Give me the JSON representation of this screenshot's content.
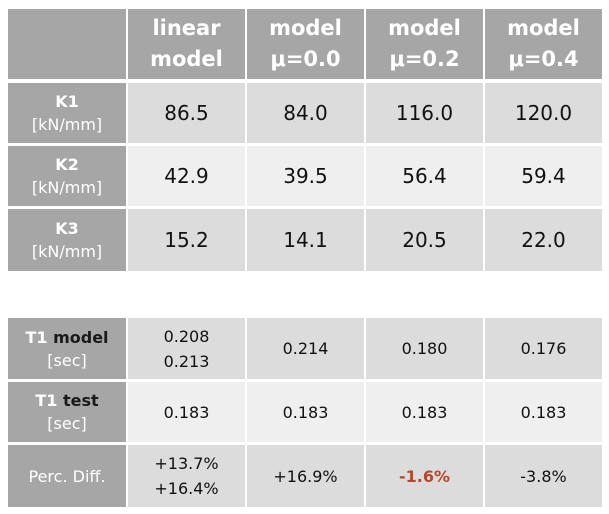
{
  "table1": {
    "headers": [
      [
        "linear",
        "model"
      ],
      [
        "model",
        "μ=0.0"
      ],
      [
        "model",
        "μ=0.2"
      ],
      [
        "model",
        "μ=0.4"
      ]
    ],
    "rows": [
      {
        "label": "K1",
        "unit": "[kN/mm]",
        "values": [
          "86.5",
          "84.0",
          "116.0",
          "120.0"
        ]
      },
      {
        "label": "K2",
        "unit": "[kN/mm]",
        "values": [
          "42.9",
          "39.5",
          "56.4",
          "59.4"
        ]
      },
      {
        "label": "K3",
        "unit": "[kN/mm]",
        "values": [
          "15.2",
          "14.1",
          "20.5",
          "22.0"
        ]
      }
    ]
  },
  "table2": {
    "t1model": {
      "label_a": "T1 ",
      "label_b": "model",
      "unit": "[sec]",
      "values": [
        [
          "0.208",
          "0.213"
        ],
        [
          "0.214"
        ],
        [
          "0.180"
        ],
        [
          "0.176"
        ]
      ]
    },
    "t1test": {
      "label_a": "T1 ",
      "label_b": "test",
      "unit": "[sec]",
      "values": [
        "0.183",
        "0.183",
        "0.183",
        "0.183"
      ]
    },
    "diff": {
      "label": "Perc. Diff.",
      "values": [
        [
          "+13.7%",
          "+16.4%"
        ],
        [
          "+16.9%"
        ],
        [
          "-1.6%"
        ],
        [
          "-3.8%"
        ]
      ]
    }
  },
  "colors": {
    "header": "#a6a6a6",
    "row_dark": "#dcdcdc",
    "row_light": "#efefef",
    "highlight": "#b5482a"
  }
}
